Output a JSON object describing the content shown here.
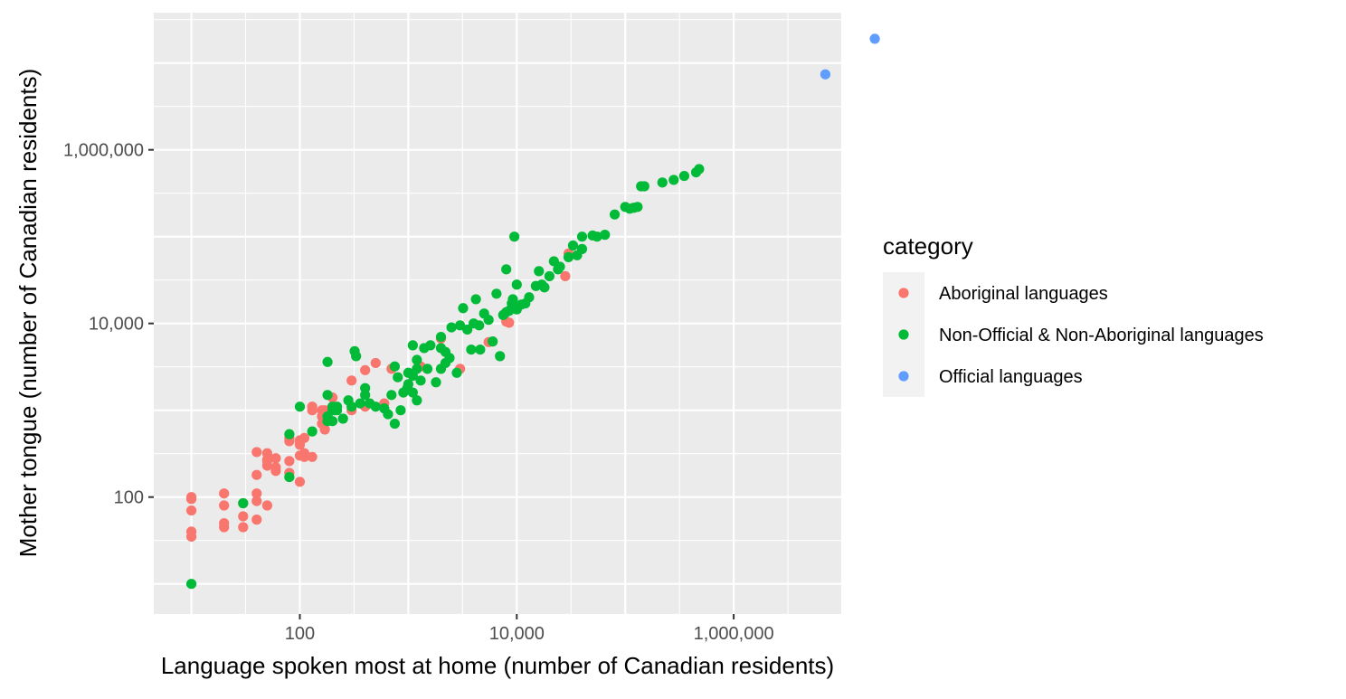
{
  "chart_data": {
    "type": "scatter",
    "xlabel": "Language spoken most at home (number of Canadian residents)",
    "ylabel": "Mother tongue (number of Canadian residents)",
    "x_scale": "log10",
    "y_scale": "log10",
    "xlim": [
      4.5,
      10000000
    ],
    "ylim": [
      4.5,
      38000000
    ],
    "x_ticks": [
      {
        "value": 100,
        "label": "100"
      },
      {
        "value": 10000,
        "label": "10,000"
      },
      {
        "value": 1000000,
        "label": "1,000,000"
      }
    ],
    "y_ticks": [
      {
        "value": 100,
        "label": "100"
      },
      {
        "value": 10000,
        "label": "10,000"
      },
      {
        "value": 1000000,
        "label": "1,000,000"
      }
    ],
    "grid": true,
    "legend": {
      "title": "category",
      "placement": "right",
      "entries": [
        {
          "label": "Aboriginal languages",
          "color": "#F8766D"
        },
        {
          "label": "Non-Official & Non-Aboriginal languages",
          "color": "#00BA38"
        },
        {
          "label": "Official languages",
          "color": "#619CFF"
        }
      ]
    },
    "series": [
      {
        "name": "Aboriginal languages",
        "color": "#F8766D",
        "points": [
          [
            10,
            100
          ],
          [
            10,
            95
          ],
          [
            10,
            70
          ],
          [
            10,
            40
          ],
          [
            10,
            35
          ],
          [
            20,
            110
          ],
          [
            20,
            80
          ],
          [
            20,
            50
          ],
          [
            20,
            45
          ],
          [
            30,
            85
          ],
          [
            30,
            60
          ],
          [
            30,
            45
          ],
          [
            40,
            330
          ],
          [
            40,
            180
          ],
          [
            40,
            110
          ],
          [
            40,
            90
          ],
          [
            40,
            55
          ],
          [
            50,
            320
          ],
          [
            50,
            270
          ],
          [
            50,
            260
          ],
          [
            50,
            230
          ],
          [
            50,
            80
          ],
          [
            60,
            280
          ],
          [
            60,
            220
          ],
          [
            60,
            200
          ],
          [
            80,
            480
          ],
          [
            80,
            440
          ],
          [
            80,
            260
          ],
          [
            80,
            190
          ],
          [
            100,
            400
          ],
          [
            100,
            450
          ],
          [
            100,
            300
          ],
          [
            100,
            150
          ],
          [
            100,
            420
          ],
          [
            110,
            320
          ],
          [
            110,
            290
          ],
          [
            110,
            480
          ],
          [
            130,
            1000
          ],
          [
            130,
            1100
          ],
          [
            130,
            290
          ],
          [
            160,
            1000
          ],
          [
            160,
            850
          ],
          [
            160,
            700
          ],
          [
            170,
            1000
          ],
          [
            170,
            600
          ],
          [
            200,
            1400
          ],
          [
            200,
            1100
          ],
          [
            300,
            1000
          ],
          [
            300,
            2200
          ],
          [
            400,
            1100
          ],
          [
            400,
            2900
          ],
          [
            500,
            3500
          ],
          [
            600,
            1200
          ],
          [
            700,
            3000
          ],
          [
            1300,
            3200
          ],
          [
            2000,
            6700
          ],
          [
            3000,
            3000
          ],
          [
            5500,
            6100
          ],
          [
            8000,
            10500
          ],
          [
            8500,
            10200
          ],
          [
            30000,
            64000
          ],
          [
            28000,
            35000
          ]
        ]
      },
      {
        "name": "Non-Official & Non-Aboriginal languages",
        "color": "#00BA38",
        "points": [
          [
            10,
            10
          ],
          [
            30,
            85
          ],
          [
            80,
            530
          ],
          [
            80,
            170
          ],
          [
            100,
            1100
          ],
          [
            130,
            570
          ],
          [
            180,
            750
          ],
          [
            180,
            3600
          ],
          [
            180,
            1500
          ],
          [
            180,
            750
          ],
          [
            180,
            850
          ],
          [
            200,
            750
          ],
          [
            200,
            1000
          ],
          [
            200,
            1100
          ],
          [
            210,
            1000
          ],
          [
            220,
            1000
          ],
          [
            220,
            1100
          ],
          [
            250,
            800
          ],
          [
            280,
            1300
          ],
          [
            300,
            1100
          ],
          [
            320,
            4800
          ],
          [
            330,
            4200
          ],
          [
            360,
            1200
          ],
          [
            400,
            1800
          ],
          [
            400,
            1500
          ],
          [
            440,
            1200
          ],
          [
            500,
            1100
          ],
          [
            600,
            1050
          ],
          [
            650,
            900
          ],
          [
            700,
            1500
          ],
          [
            750,
            700
          ],
          [
            750,
            3200
          ],
          [
            800,
            2400
          ],
          [
            850,
            1000
          ],
          [
            900,
            1600
          ],
          [
            980,
            1800
          ],
          [
            1000,
            2700
          ],
          [
            1000,
            2000
          ],
          [
            1100,
            5600
          ],
          [
            1100,
            2500
          ],
          [
            1100,
            1600
          ],
          [
            1200,
            3000
          ],
          [
            1200,
            1300
          ],
          [
            1200,
            3800
          ],
          [
            1300,
            2200
          ],
          [
            1400,
            5200
          ],
          [
            1500,
            3000
          ],
          [
            1600,
            5600
          ],
          [
            1800,
            2100
          ],
          [
            2000,
            7000
          ],
          [
            2000,
            5200
          ],
          [
            2000,
            3000
          ],
          [
            2200,
            4700
          ],
          [
            2200,
            3500
          ],
          [
            2400,
            4000
          ],
          [
            2500,
            9000
          ],
          [
            2800,
            2700
          ],
          [
            3000,
            9500
          ],
          [
            3200,
            15000
          ],
          [
            3500,
            8500
          ],
          [
            3800,
            5000
          ],
          [
            4000,
            10000
          ],
          [
            4200,
            19000
          ],
          [
            4500,
            9500
          ],
          [
            4600,
            5000
          ],
          [
            5000,
            13000
          ],
          [
            5500,
            11000
          ],
          [
            6000,
            6200
          ],
          [
            6500,
            22000
          ],
          [
            7000,
            4200
          ],
          [
            7500,
            12500
          ],
          [
            8000,
            13500
          ],
          [
            8500,
            14000
          ],
          [
            9000,
            17000
          ],
          [
            9200,
            19000
          ],
          [
            10000,
            28000
          ],
          [
            10000,
            14500
          ],
          [
            11000,
            16500
          ],
          [
            12000,
            17000
          ],
          [
            13000,
            20000
          ],
          [
            15000,
            27000
          ],
          [
            16000,
            40000
          ],
          [
            17000,
            28000
          ],
          [
            18000,
            26000
          ],
          [
            20000,
            35000
          ],
          [
            22000,
            52000
          ],
          [
            24000,
            42000
          ],
          [
            25000,
            45000
          ],
          [
            30000,
            58000
          ],
          [
            33000,
            79000
          ],
          [
            36000,
            61000
          ],
          [
            40000,
            100000
          ],
          [
            40000,
            72000
          ],
          [
            50000,
            103000
          ],
          [
            55000,
            100000
          ],
          [
            65000,
            105000
          ],
          [
            80000,
            180000
          ],
          [
            100000,
            220000
          ],
          [
            110000,
            210000
          ],
          [
            120000,
            215000
          ],
          [
            130000,
            220000
          ],
          [
            140000,
            380000
          ],
          [
            150000,
            380000
          ],
          [
            220000,
            420000
          ],
          [
            280000,
            450000
          ],
          [
            350000,
            500000
          ],
          [
            450000,
            550000
          ],
          [
            480000,
            600000
          ],
          [
            9500,
            100000
          ],
          [
            8000,
            42000
          ]
        ]
      },
      {
        "name": "Official languages",
        "color": "#619CFF",
        "points": [
          [
            7000000,
            7400000
          ],
          [
            20000000,
            19000000
          ]
        ]
      }
    ]
  }
}
